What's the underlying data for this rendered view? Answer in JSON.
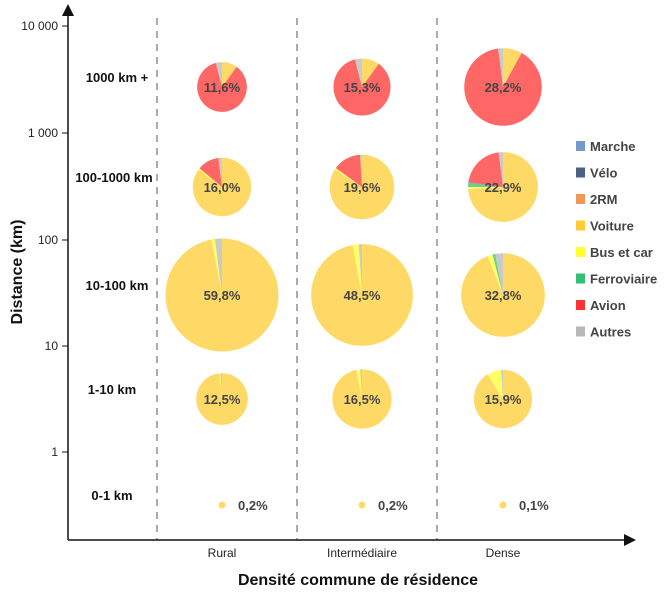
{
  "chart_data": {
    "type": "pie",
    "title": "",
    "xlabel": "Densité commune de résidence",
    "ylabel": "Distance (km)",
    "y_scale": "log",
    "y_ticks": [
      "1",
      "10",
      "100",
      "1 000",
      "10 000"
    ],
    "categories": [
      "Rural",
      "Intermédiaire",
      "Dense"
    ],
    "distance_bands": [
      "1000 km +",
      "100-1000 km",
      "10-100 km",
      "1-10 km",
      "0-1 km"
    ],
    "legend": {
      "position": "right",
      "entries": [
        {
          "name": "Marche",
          "color": "#4f81bd"
        },
        {
          "name": "Vélo",
          "color": "#1f3864"
        },
        {
          "name": "2RM",
          "color": "#ed7d31"
        },
        {
          "name": "Voiture",
          "color": "#ffc000"
        },
        {
          "name": "Bus et car",
          "color": "#ffff00"
        },
        {
          "name": "Ferroviaire",
          "color": "#00b050"
        },
        {
          "name": "Avion",
          "color": "#ff0000"
        },
        {
          "name": "Autres",
          "color": "#a6a6a6"
        }
      ]
    },
    "pies": [
      {
        "band": "1000 km +",
        "category": "Rural",
        "share_label": "11,6%",
        "share": 11.6,
        "slices": [
          0,
          0,
          0,
          10,
          0,
          0,
          86,
          4
        ]
      },
      {
        "band": "1000 km +",
        "category": "Intermédiaire",
        "share_label": "15,3%",
        "share": 15.3,
        "slices": [
          0,
          0,
          0,
          10,
          0,
          0,
          86,
          4
        ]
      },
      {
        "band": "1000 km +",
        "category": "Dense",
        "share_label": "28,2%",
        "share": 28.2,
        "slices": [
          0,
          0,
          0,
          8,
          0,
          0,
          90,
          2
        ]
      },
      {
        "band": "100-1000 km",
        "category": "Rural",
        "share_label": "16,0%",
        "share": 16.0,
        "slices": [
          0,
          0,
          0,
          85,
          1,
          0,
          12,
          2
        ]
      },
      {
        "band": "100-1000 km",
        "category": "Intermédiaire",
        "share_label": "19,6%",
        "share": 19.6,
        "slices": [
          0,
          0,
          0,
          84,
          1,
          0,
          14,
          1
        ]
      },
      {
        "band": "100-1000 km",
        "category": "Dense",
        "share_label": "22,9%",
        "share": 22.9,
        "slices": [
          0,
          0,
          0,
          74,
          1,
          2,
          21,
          2
        ]
      },
      {
        "band": "10-100 km",
        "category": "Rural",
        "share_label": "59,8%",
        "share": 59.8,
        "slices": [
          0,
          0,
          0,
          97,
          1,
          0,
          0,
          2
        ]
      },
      {
        "band": "10-100 km",
        "category": "Intermédiaire",
        "share_label": "48,5%",
        "share": 48.5,
        "slices": [
          0,
          0,
          0,
          97,
          2,
          0,
          0,
          1
        ]
      },
      {
        "band": "10-100 km",
        "category": "Dense",
        "share_label": "32,8%",
        "share": 32.8,
        "slices": [
          0,
          0,
          0,
          94,
          2,
          1,
          0,
          3
        ]
      },
      {
        "band": "1-10 km",
        "category": "Rural",
        "share_label": "12,5%",
        "share": 12.5,
        "slices": [
          0,
          0,
          0,
          98,
          1,
          0,
          0,
          1
        ]
      },
      {
        "band": "1-10 km",
        "category": "Intermédiaire",
        "share_label": "16,5%",
        "share": 16.5,
        "slices": [
          0,
          0,
          0,
          97,
          2,
          0,
          0,
          1
        ]
      },
      {
        "band": "1-10 km",
        "category": "Dense",
        "share_label": "15,9%",
        "share": 15.9,
        "slices": [
          0,
          0,
          0,
          91,
          8,
          0,
          0,
          1
        ]
      },
      {
        "band": "0-1 km",
        "category": "Rural",
        "share_label": "0,2%",
        "share": 0.2,
        "slices": [
          0,
          0,
          0,
          100,
          0,
          0,
          0,
          0
        ]
      },
      {
        "band": "0-1 km",
        "category": "Intermédiaire",
        "share_label": "0,2%",
        "share": 0.2,
        "slices": [
          0,
          0,
          0,
          100,
          0,
          0,
          0,
          0
        ]
      },
      {
        "band": "0-1 km",
        "category": "Dense",
        "share_label": "0,1%",
        "share": 0.1,
        "slices": [
          0,
          0,
          0,
          100,
          0,
          0,
          0,
          0
        ]
      }
    ]
  }
}
